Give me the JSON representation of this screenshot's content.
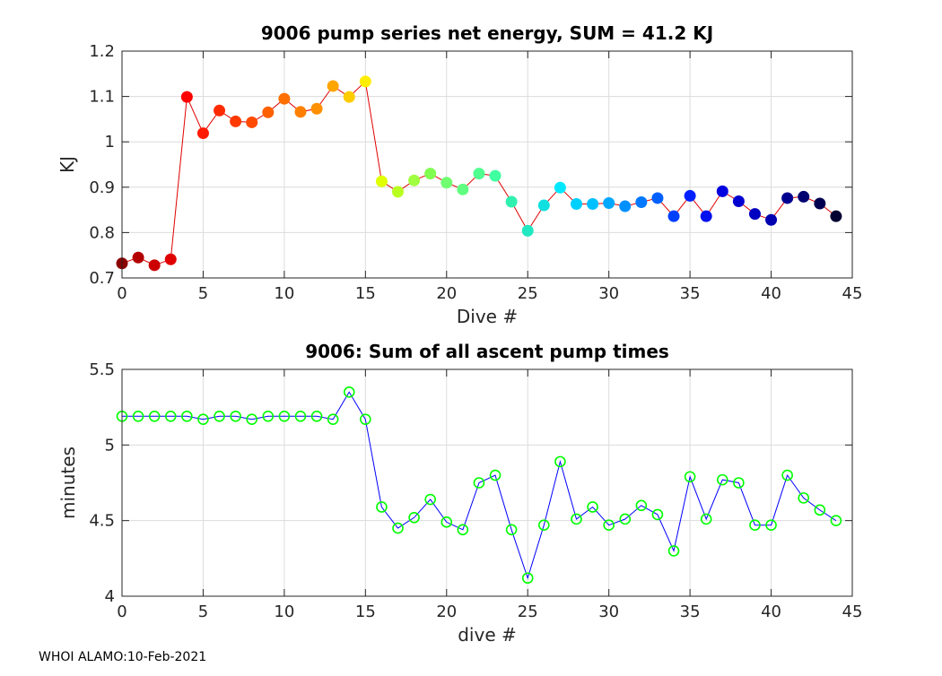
{
  "chart_data": [
    {
      "type": "line",
      "title": "9006 pump series net energy, SUM =  41.2 KJ",
      "xlabel": "Dive #",
      "ylabel": "KJ",
      "xlim": [
        0,
        45
      ],
      "ylim": [
        0.7,
        1.2
      ],
      "xticks": [
        "0",
        "5",
        "10",
        "15",
        "20",
        "25",
        "30",
        "35",
        "40",
        "45"
      ],
      "yticks": [
        "0.7",
        "0.8",
        "0.9",
        "1",
        "1.1",
        "1.2"
      ],
      "grid": true,
      "line_color": "#e00000",
      "marker": "filled-circle-colormap",
      "x": [
        0,
        1,
        2,
        3,
        4,
        5,
        6,
        7,
        8,
        9,
        10,
        11,
        12,
        13,
        14,
        15,
        16,
        17,
        18,
        19,
        20,
        21,
        22,
        23,
        24,
        25,
        26,
        27,
        28,
        29,
        30,
        31,
        32,
        33,
        34,
        35,
        36,
        37,
        38,
        39,
        40,
        41,
        42,
        43,
        44
      ],
      "values": [
        0.732,
        0.745,
        0.728,
        0.741,
        1.099,
        1.019,
        1.069,
        1.045,
        1.043,
        1.065,
        1.095,
        1.066,
        1.073,
        1.123,
        1.099,
        1.133,
        0.913,
        0.89,
        0.915,
        0.93,
        0.91,
        0.895,
        0.93,
        0.925,
        0.868,
        0.804,
        0.86,
        0.899,
        0.863,
        0.863,
        0.865,
        0.858,
        0.867,
        0.876,
        0.836,
        0.881,
        0.836,
        0.891,
        0.869,
        0.841,
        0.828,
        0.876,
        0.879,
        0.864,
        0.836
      ],
      "colors": [
        "#8b0000",
        "#b30000",
        "#cc0000",
        "#e00000",
        "#ff0000",
        "#ff1a00",
        "#ff2a00",
        "#ff3a00",
        "#ff4a00",
        "#ff6000",
        "#ff7000",
        "#ff8000",
        "#ff9000",
        "#ffa500",
        "#ffcc00",
        "#ffee00",
        "#e0ff00",
        "#b8ff20",
        "#a0ff40",
        "#80ff50",
        "#70ff70",
        "#60ff80",
        "#50ff90",
        "#40ffa0",
        "#30f0b0",
        "#20e8c0",
        "#10e0e0",
        "#00e8ff",
        "#00d0ff",
        "#00c0ff",
        "#00a8ff",
        "#0090ff",
        "#0078ff",
        "#0060ff",
        "#0040ff",
        "#0020ff",
        "#0010ee",
        "#0000e0",
        "#0000d0",
        "#0000c0",
        "#0000b0",
        "#000090",
        "#000070",
        "#000050",
        "#000030"
      ]
    },
    {
      "type": "line",
      "title": "9006: Sum of all ascent pump times",
      "xlabel": "dive #",
      "ylabel": "minutes",
      "xlim": [
        0,
        45
      ],
      "ylim": [
        4,
        5.5
      ],
      "xticks": [
        "0",
        "5",
        "10",
        "15",
        "20",
        "25",
        "30",
        "35",
        "40",
        "45"
      ],
      "yticks": [
        "4",
        "4.5",
        "5",
        "5.5"
      ],
      "grid": true,
      "line_color": "#0000ff",
      "marker_color": "#00ff00",
      "marker": "open-circle",
      "x": [
        0,
        1,
        2,
        3,
        4,
        5,
        6,
        7,
        8,
        9,
        10,
        11,
        12,
        13,
        14,
        15,
        16,
        17,
        18,
        19,
        20,
        21,
        22,
        23,
        24,
        25,
        26,
        27,
        28,
        29,
        30,
        31,
        32,
        33,
        34,
        35,
        36,
        37,
        38,
        39,
        40,
        41,
        42,
        43,
        44
      ],
      "values": [
        5.19,
        5.19,
        5.19,
        5.19,
        5.19,
        5.17,
        5.19,
        5.19,
        5.17,
        5.19,
        5.19,
        5.19,
        5.19,
        5.17,
        5.35,
        5.17,
        4.59,
        4.45,
        4.52,
        4.64,
        4.49,
        4.44,
        4.75,
        4.8,
        4.44,
        4.12,
        4.47,
        4.89,
        4.51,
        4.59,
        4.47,
        4.51,
        4.6,
        4.54,
        4.3,
        4.79,
        4.51,
        4.77,
        4.75,
        4.47,
        4.47,
        4.8,
        4.65,
        4.57,
        4.5
      ]
    }
  ],
  "footer": "WHOI ALAMO:10-Feb-2021"
}
